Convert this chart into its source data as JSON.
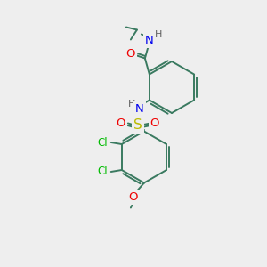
{
  "bg_color": "#eeeeee",
  "C": "#3a7a60",
  "N": "#0000ee",
  "O": "#ee0000",
  "S": "#bbbb00",
  "Cl": "#00bb00",
  "H": "#606060",
  "bond": "#3a7a60",
  "figsize": [
    3.0,
    3.0
  ],
  "dpi": 100
}
